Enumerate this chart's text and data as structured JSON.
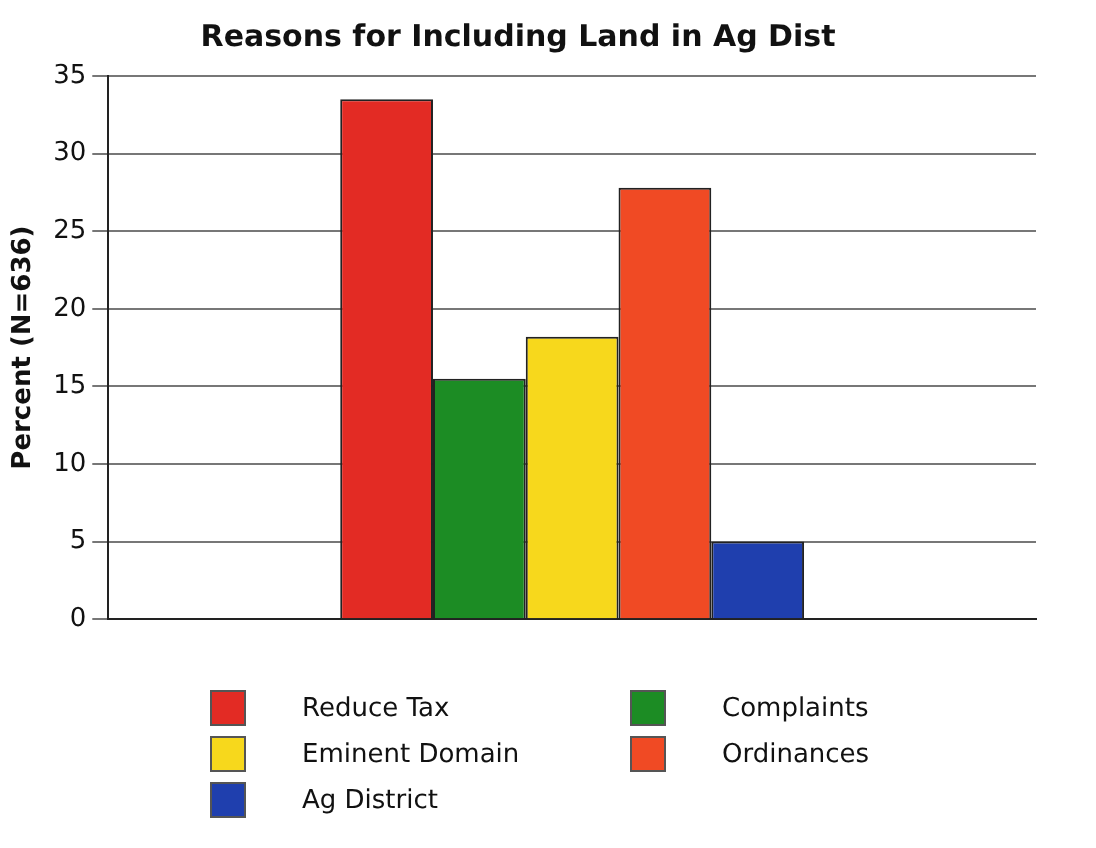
{
  "chart_data": {
    "type": "bar",
    "title": "Reasons for Including Land in Ag Dist",
    "ylabel": "Percent (N=636)",
    "categories": [
      null
    ],
    "series": [
      {
        "name": "Reduce Tax",
        "color": "#e32b24",
        "values": [
          33.5
        ]
      },
      {
        "name": "Complaints",
        "color": "#1c8c24",
        "values": [
          15.5
        ]
      },
      {
        "name": "Eminent Domain",
        "color": "#f7d81c",
        "values": [
          18.2
        ]
      },
      {
        "name": "Ordinances",
        "color": "#f04a24",
        "values": [
          27.8
        ]
      },
      {
        "name": "Ag District",
        "color": "#1f3fae",
        "values": [
          5
        ]
      }
    ],
    "ylim": [
      0,
      35
    ],
    "yticks": [
      0,
      5,
      10,
      15,
      20,
      25,
      30,
      35
    ],
    "grid": "y",
    "legend": "bottom"
  }
}
